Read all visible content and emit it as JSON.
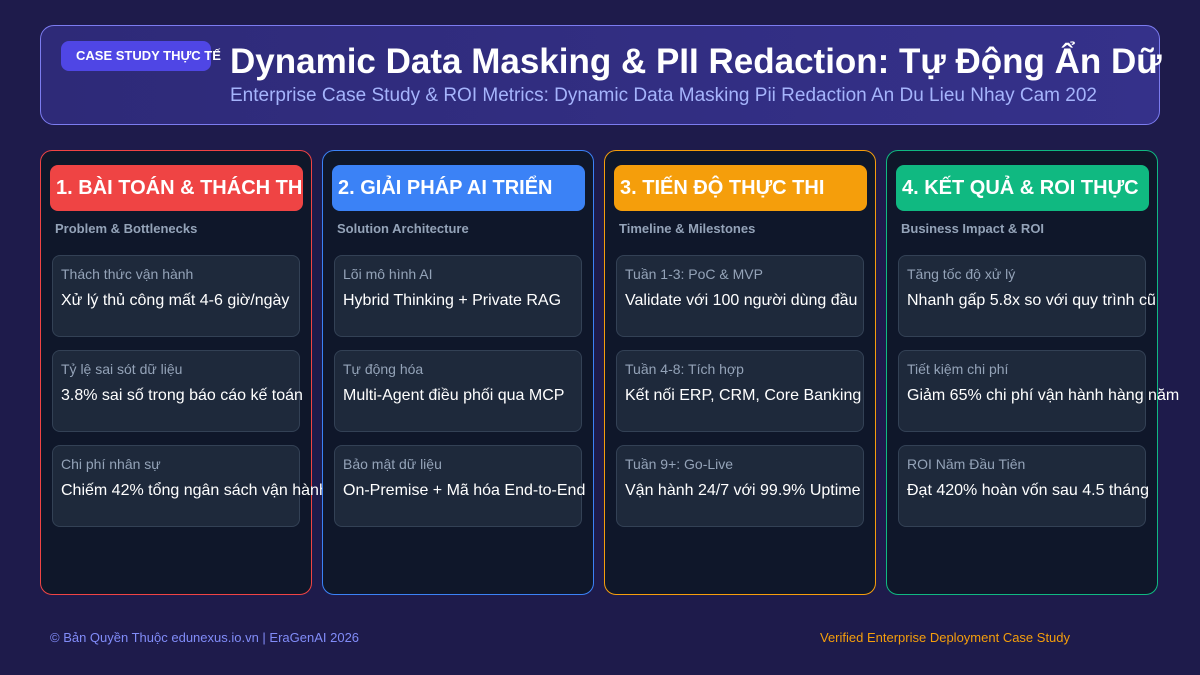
{
  "header": {
    "badge": "CASE STUDY THỰC TẾ",
    "title": "Dynamic Data Masking & PII Redaction: Tự Động Ẩn Dữ",
    "subtitle": "Enterprise Case Study & ROI Metrics: Dynamic Data Masking Pii Redaction An Du Lieu Nhay Cam 202"
  },
  "columns": [
    {
      "title": "1. BÀI TOÁN & THÁCH TH",
      "subtitle": "Problem & Bottlenecks",
      "color": "#ef4444",
      "cards": [
        {
          "label": "Thách thức vận hành",
          "text": "Xử lý thủ công mất 4-6 giờ/ngày"
        },
        {
          "label": "Tỷ lệ sai sót dữ liệu",
          "text": "3.8% sai số trong báo cáo kế toán"
        },
        {
          "label": "Chi phí nhân sự",
          "text": "Chiếm 42% tổng ngân sách vận hành"
        }
      ]
    },
    {
      "title": "2. GIẢI PHÁP AI TRIỂN",
      "subtitle": "Solution Architecture",
      "color": "#3b82f6",
      "cards": [
        {
          "label": "Lõi mô hình AI",
          "text": "Hybrid Thinking + Private RAG"
        },
        {
          "label": "Tự động hóa",
          "text": "Multi-Agent điều phối qua MCP"
        },
        {
          "label": "Bảo mật dữ liệu",
          "text": "On-Premise + Mã hóa End-to-End"
        }
      ]
    },
    {
      "title": "3. TIẾN ĐỘ THỰC THI",
      "subtitle": "Timeline & Milestones",
      "color": "#f59e0b",
      "cards": [
        {
          "label": "Tuần 1-3: PoC & MVP",
          "text": "Validate với 100 người dùng đầu"
        },
        {
          "label": "Tuần 4-8: Tích hợp",
          "text": "Kết nối ERP, CRM, Core Banking"
        },
        {
          "label": "Tuần 9+: Go-Live",
          "text": "Vận hành 24/7 với 99.9% Uptime"
        }
      ]
    },
    {
      "title": "4. KẾT QUẢ & ROI THỰC",
      "subtitle": "Business Impact & ROI",
      "color": "#10b981",
      "cards": [
        {
          "label": "Tăng tốc độ xử lý",
          "text": "Nhanh gấp 5.8x so với quy trình cũ"
        },
        {
          "label": "Tiết kiệm chi phí",
          "text": "Giảm 65% chi phí vận hành hàng năm"
        },
        {
          "label": "ROI Năm Đầu Tiên",
          "text": "Đạt 420% hoàn vốn sau 4.5 tháng"
        }
      ]
    }
  ],
  "footer": {
    "left": "© Bản Quyền Thuộc edunexus.io.vn | EraGenAI 2026",
    "right": "Verified Enterprise Deployment Case Study"
  }
}
